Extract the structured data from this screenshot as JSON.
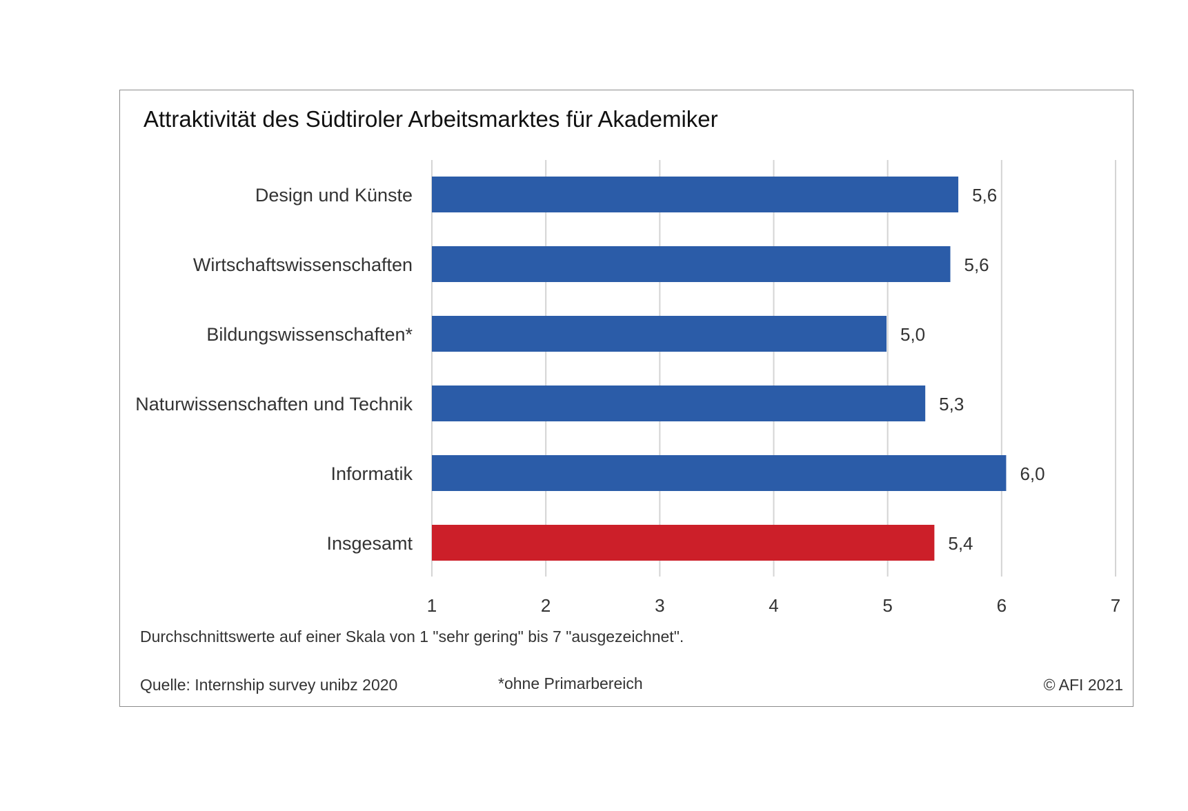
{
  "chart_data": {
    "type": "bar",
    "orientation": "horizontal",
    "title": "Attraktivität des Südtiroler Arbeitsmarktes für Akademiker",
    "categories": [
      "Design und Künste",
      "Wirtschaftswissenschaften",
      "Bildungswissenschaften*",
      "Naturwissenschaften und Technik",
      "Informatik",
      "Insgesamt"
    ],
    "values": [
      5.62,
      5.55,
      4.99,
      5.33,
      6.04,
      5.41
    ],
    "value_labels": [
      "5,6",
      "5,6",
      "5,0",
      "5,3",
      "6,0",
      "5,4"
    ],
    "bar_colors": [
      "#2b5ca8",
      "#2b5ca8",
      "#2b5ca8",
      "#2b5ca8",
      "#2b5ca8",
      "#cc1f29"
    ],
    "xlim": [
      1,
      7
    ],
    "xticks": [
      "1",
      "2",
      "3",
      "4",
      "5",
      "6",
      "7"
    ],
    "grid": true,
    "legend": "none"
  },
  "note": "Durchschnittswerte auf einer Skala von 1 \"sehr gering\" bis 7 \"ausgezeichnet\".",
  "source": "Quelle: Internship survey unibz 2020",
  "footnote": "*ohne Primarbereich",
  "copyright": "© AFI 2021",
  "colors": {
    "gridline": "#d4d4d4",
    "axis_text": "#333333"
  }
}
